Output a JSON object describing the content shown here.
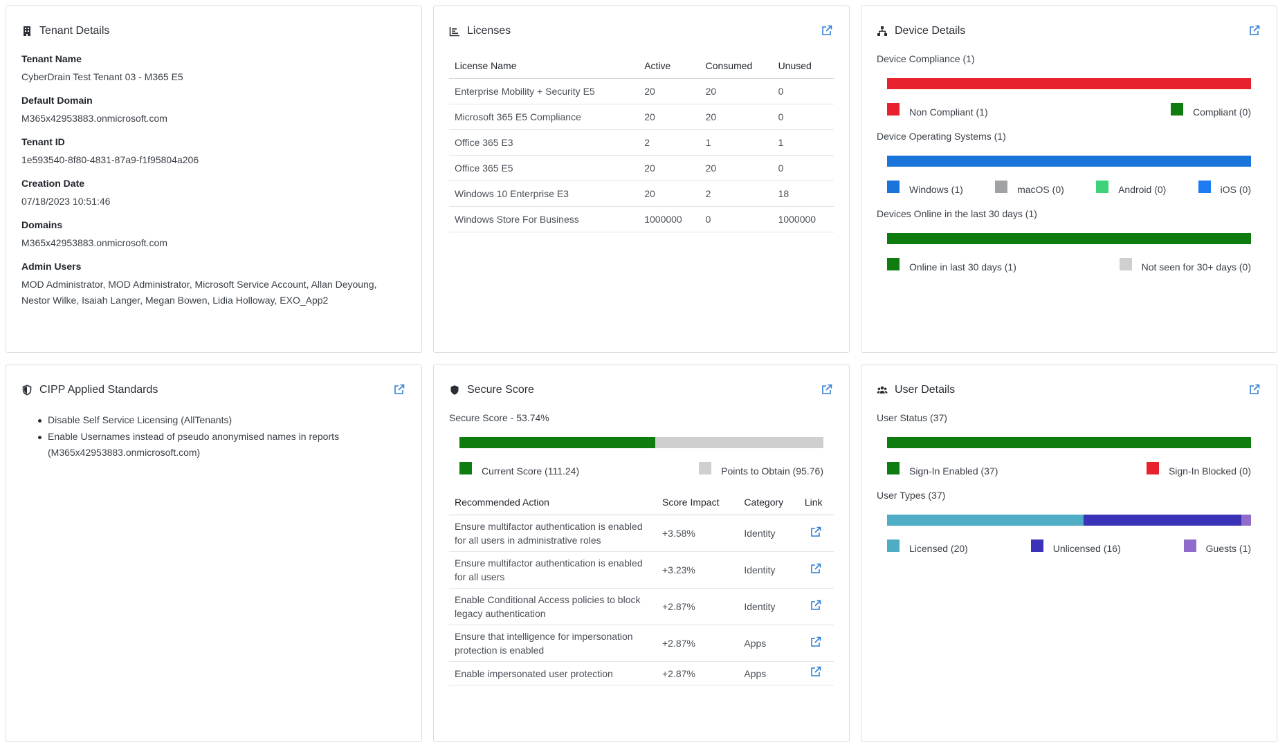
{
  "tenant": {
    "title": "Tenant Details",
    "fields": [
      {
        "label": "Tenant Name",
        "value": "CyberDrain Test Tenant 03 - M365 E5"
      },
      {
        "label": "Default Domain",
        "value": "M365x42953883.onmicrosoft.com"
      },
      {
        "label": "Tenant ID",
        "value": "1e593540-8f80-4831-87a9-f1f95804a206"
      },
      {
        "label": "Creation Date",
        "value": "07/18/2023 10:51:46"
      },
      {
        "label": "Domains",
        "value": "M365x42953883.onmicrosoft.com"
      },
      {
        "label": "Admin Users",
        "value": "MOD Administrator, MOD Administrator, Microsoft Service Account, Allan Deyoung, Nestor Wilke, Isaiah Langer, Megan Bowen, Lidia Holloway, EXO_App2"
      }
    ]
  },
  "licenses": {
    "title": "Licenses",
    "columns": [
      "License Name",
      "Active",
      "Consumed",
      "Unused"
    ],
    "rows": [
      [
        "Enterprise Mobility + Security E5",
        "20",
        "20",
        "0"
      ],
      [
        "Microsoft 365 E5 Compliance",
        "20",
        "20",
        "0"
      ],
      [
        "Office 365 E3",
        "2",
        "1",
        "1"
      ],
      [
        "Office 365 E5",
        "20",
        "20",
        "0"
      ],
      [
        "Windows 10 Enterprise E3",
        "20",
        "2",
        "18"
      ],
      [
        "Windows Store For Business",
        "1000000",
        "0",
        "1000000"
      ]
    ]
  },
  "device": {
    "title": "Device Details",
    "compliance": {
      "label": "Device Compliance (1)",
      "segments": [
        {
          "value": 1,
          "color": "#e8222c"
        },
        {
          "value": 0,
          "color": "#0e7c0e"
        }
      ],
      "legend": [
        {
          "label": "Non Compliant (1)",
          "color": "#e8222c"
        },
        {
          "label": "Compliant (0)",
          "color": "#0e7c0e"
        }
      ]
    },
    "os": {
      "label": "Device Operating Systems (1)",
      "segments": [
        {
          "value": 1,
          "color": "#1a74d9"
        }
      ],
      "legend": [
        {
          "label": "Windows (1)",
          "color": "#1a74d9"
        },
        {
          "label": "macOS (0)",
          "color": "#a0a3a6"
        },
        {
          "label": "Android (0)",
          "color": "#3ed27a"
        },
        {
          "label": "iOS (0)",
          "color": "#1d7cf2"
        }
      ]
    },
    "online": {
      "label": "Devices Online in the last 30 days (1)",
      "segments": [
        {
          "value": 1,
          "color": "#0e7c0e"
        }
      ],
      "legend": [
        {
          "label": "Online in last 30 days (1)",
          "color": "#0e7c0e"
        },
        {
          "label": "Not seen for 30+ days (0)",
          "color": "#cfcfcf"
        }
      ]
    }
  },
  "standards": {
    "title": "CIPP Applied Standards",
    "items": [
      "Disable Self Service Licensing (AllTenants)",
      "Enable Usernames instead of pseudo anonymised names in reports (M365x42953883.onmicrosoft.com)"
    ]
  },
  "secure_score": {
    "title": "Secure Score",
    "label": "Secure Score - 53.74%",
    "current": 111.24,
    "to_obtain": 95.76,
    "legend": [
      {
        "label": "Current Score (111.24)",
        "color": "#0e7c0e"
      },
      {
        "label": "Points to Obtain (95.76)",
        "color": "#cfcfcf"
      }
    ],
    "columns": [
      "Recommended Action",
      "Score Impact",
      "Category",
      "Link"
    ],
    "rows": [
      [
        "Ensure multifactor authentication is enabled for all users in administrative roles",
        "+3.58%",
        "Identity"
      ],
      [
        "Ensure multifactor authentication is enabled for all users",
        "+3.23%",
        "Identity"
      ],
      [
        "Enable Conditional Access policies to block legacy authentication",
        "+2.87%",
        "Identity"
      ],
      [
        "Ensure that intelligence for impersonation protection is enabled",
        "+2.87%",
        "Apps"
      ],
      [
        "Enable impersonated user protection",
        "+2.87%",
        "Apps"
      ]
    ]
  },
  "users": {
    "title": "User Details",
    "status": {
      "label": "User Status (37)",
      "segments": [
        {
          "value": 37,
          "color": "#0e7c0e"
        },
        {
          "value": 0,
          "color": "#e8222c"
        }
      ],
      "legend": [
        {
          "label": "Sign-In Enabled (37)",
          "color": "#0e7c0e"
        },
        {
          "label": "Sign-In Blocked (0)",
          "color": "#e8222c"
        }
      ]
    },
    "types": {
      "label": "User Types (37)",
      "segments": [
        {
          "value": 20,
          "color": "#4eacc4"
        },
        {
          "value": 16,
          "color": "#3a33b8"
        },
        {
          "value": 1,
          "color": "#8f6bcc"
        }
      ],
      "legend": [
        {
          "label": "Licensed (20)",
          "color": "#4eacc4"
        },
        {
          "label": "Unlicensed (16)",
          "color": "#3a33b8"
        },
        {
          "label": "Guests (1)",
          "color": "#8f6bcc"
        }
      ]
    }
  }
}
